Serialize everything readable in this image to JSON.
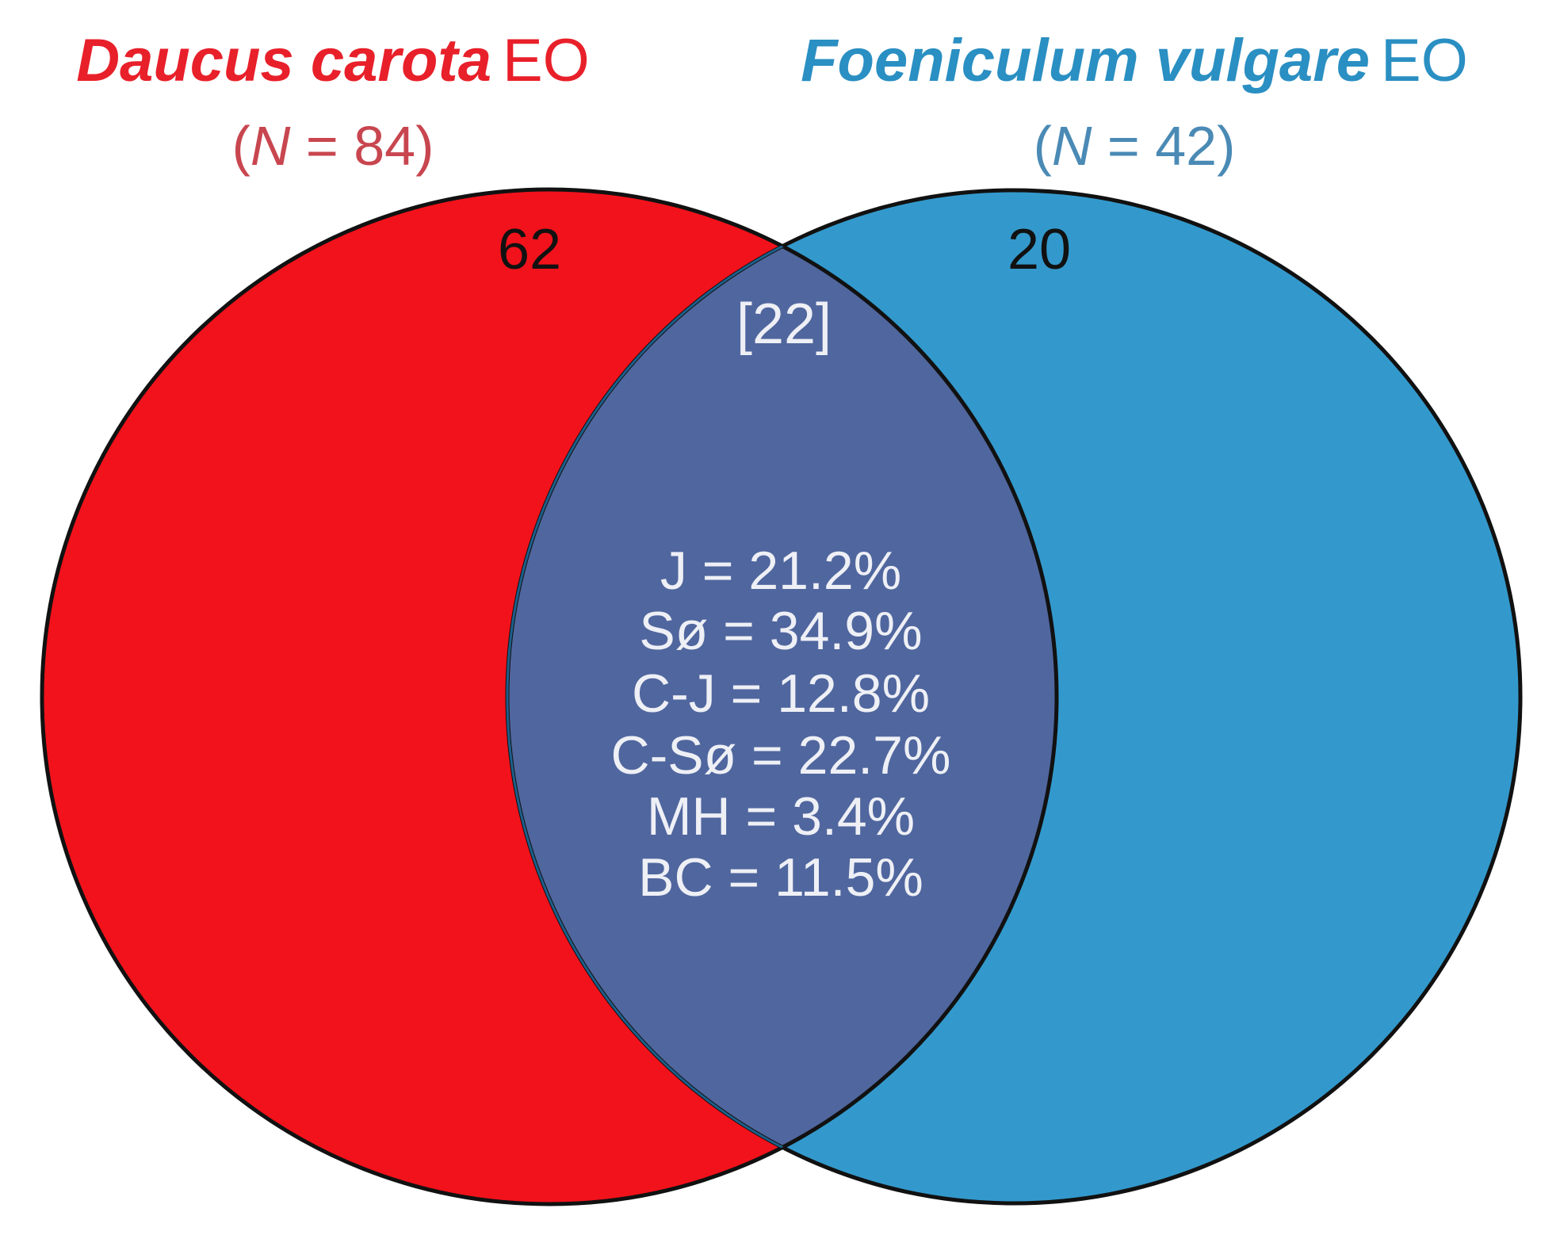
{
  "sets": [
    {
      "name": "Daucus carota",
      "suffix": "EO",
      "n_label": [
        "(",
        "N",
        " = 84)"
      ],
      "exclusive": 62
    },
    {
      "name": "Foeniculum vulgare",
      "suffix": "EO",
      "n_label": [
        "(",
        "N",
        " = 42)"
      ],
      "exclusive": 20
    }
  ],
  "overlap": {
    "count": "[22]",
    "stats": [
      "J = 21.2%",
      "Sø = 34.9%",
      "C-J = 12.8%",
      "C-Sø = 22.7%",
      "MH = 3.4%",
      "BC = 11.5%"
    ]
  }
}
